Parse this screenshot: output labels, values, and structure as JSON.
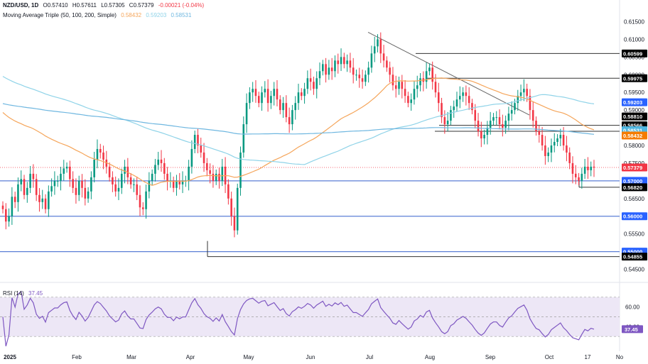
{
  "header": {
    "symbol": "NZD/USD, 1D",
    "open": "O0.57410",
    "high": "H0.57611",
    "low": "L0.57305",
    "close": "C0.57379",
    "change": "-0.00021 (-0.04%)",
    "ma_label": "Moving Average Triple (50, 100, 200, Simple)",
    "ma50_val": "0.58432",
    "ma100_val": "0.59203",
    "ma200_val": "0.58531"
  },
  "rsi_header": {
    "label": "RSI (14)",
    "value": "37.45"
  },
  "colors": {
    "up": "#089981",
    "down": "#f23645",
    "ma50": "#f5a55a",
    "ma100": "#8fd3e8",
    "ma200": "#6fb7e0",
    "hline": "#5b7fd6",
    "trend": "#555555",
    "rsi": "#7e57c2",
    "rsi_band": "#ede7f6"
  },
  "chart_data": [
    {
      "type": "candlestick",
      "title": "NZD/USD, 1D",
      "ylim": [
        0.5425,
        0.6175
      ],
      "y_ticks": [
        "0.61500",
        "0.61000",
        "0.60500",
        "0.60000",
        "0.59500",
        "0.59000",
        "0.58500",
        "0.58000",
        "0.57500",
        "0.57000",
        "0.56500",
        "0.56000",
        "0.55500",
        "0.55000",
        "0.54500"
      ],
      "x_ticks": [
        "2025",
        "Feb",
        "Mar",
        "Apr",
        "May",
        "Jun",
        "Jul",
        "Aug",
        "Sep",
        "Oct",
        "17",
        "No"
      ],
      "last_close": 0.57379,
      "series_seed": [
        [
          0.558,
          0.564
        ],
        [
          0.556,
          0.56
        ],
        [
          0.56,
          0.556
        ],
        [
          0.561,
          0.565
        ],
        [
          0.564,
          0.568
        ],
        [
          0.569,
          0.564
        ],
        [
          0.57,
          0.566
        ],
        [
          0.568,
          0.563
        ],
        [
          0.565,
          0.57
        ],
        [
          0.57,
          0.573
        ],
        [
          0.569,
          0.564
        ],
        [
          0.561,
          0.565
        ]
      ],
      "closes": [
        0.562,
        0.5585,
        0.56,
        0.5655,
        0.564,
        0.569,
        0.5705,
        0.566,
        0.568,
        0.572,
        0.5705,
        0.566,
        0.564,
        0.565,
        0.562,
        0.567,
        0.5685,
        0.57,
        0.57,
        0.572,
        0.5735,
        0.574,
        0.5705,
        0.568,
        0.566,
        0.57,
        0.568,
        0.565,
        0.567,
        0.571,
        0.576,
        0.579,
        0.578,
        0.576,
        0.574,
        0.571,
        0.569,
        0.567,
        0.568,
        0.572,
        0.574,
        0.571,
        0.569,
        0.569,
        0.566,
        0.5625,
        0.562,
        0.567,
        0.57,
        0.572,
        0.5745,
        0.576,
        0.575,
        0.572,
        0.57,
        0.57,
        0.568,
        0.57,
        0.569,
        0.57,
        0.57,
        0.574,
        0.579,
        0.583,
        0.58,
        0.578,
        0.575,
        0.573,
        0.572,
        0.57,
        0.572,
        0.57,
        0.574,
        0.569,
        0.565,
        0.56,
        0.556,
        0.568,
        0.578,
        0.586,
        0.592,
        0.595,
        0.596,
        0.594,
        0.592,
        0.595,
        0.596,
        0.592,
        0.594,
        0.596,
        0.593,
        0.59,
        0.592,
        0.588,
        0.586,
        0.59,
        0.592,
        0.595,
        0.594,
        0.596,
        0.599,
        0.598,
        0.596,
        0.599,
        0.601,
        0.603,
        0.6,
        0.602,
        0.601,
        0.604,
        0.603,
        0.605,
        0.603,
        0.604,
        0.602,
        0.6,
        0.6,
        0.599,
        0.598,
        0.6,
        0.602,
        0.606,
        0.608,
        0.61,
        0.606,
        0.604,
        0.602,
        0.6,
        0.597,
        0.596,
        0.598,
        0.596,
        0.594,
        0.592,
        0.593,
        0.596,
        0.597,
        0.599,
        0.598,
        0.601,
        0.602,
        0.598,
        0.595,
        0.592,
        0.588,
        0.586,
        0.587,
        0.59,
        0.591,
        0.593,
        0.594,
        0.595,
        0.594,
        0.592,
        0.59,
        0.587,
        0.584,
        0.582,
        0.583,
        0.585,
        0.587,
        0.588,
        0.588,
        0.586,
        0.585,
        0.587,
        0.589,
        0.59,
        0.592,
        0.594,
        0.595,
        0.596,
        0.594,
        0.59,
        0.587,
        0.584,
        0.583,
        0.58,
        0.577,
        0.578,
        0.58,
        0.581,
        0.582,
        0.583,
        0.58,
        0.578,
        0.575,
        0.572,
        0.571,
        0.57,
        0.572,
        0.574,
        0.573,
        0.574,
        0.5738
      ]
    },
    {
      "type": "line",
      "title": "RSI (14)",
      "ylim": [
        20,
        80
      ],
      "y_ticks": [
        "60.00",
        "40.00"
      ],
      "last_value": 37.45
    }
  ]
}
